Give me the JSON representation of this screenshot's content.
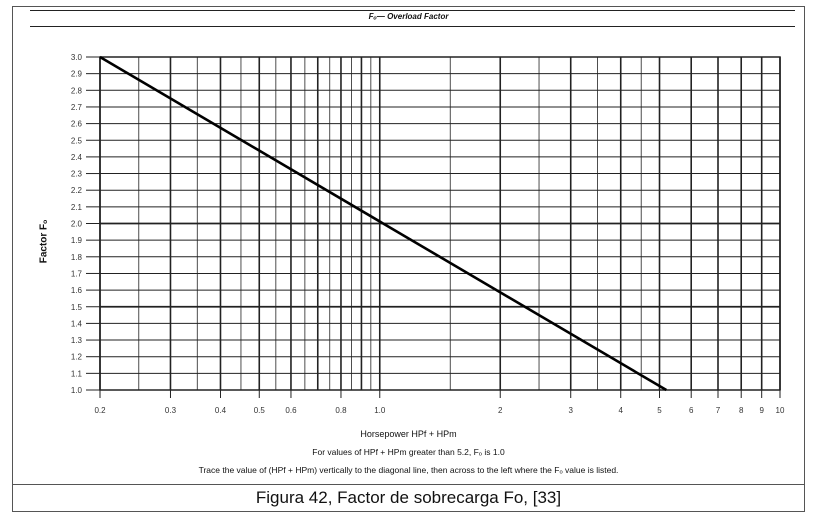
{
  "header": {
    "title": "Fₒ— Overload Factor"
  },
  "chart_data": {
    "type": "line",
    "xscale": "log",
    "xlim": [
      0.2,
      10
    ],
    "ylim": [
      1.0,
      3.0
    ],
    "xlabel": "Horsepower HPf + HPm",
    "ylabel": "Factor Fₒ",
    "x_ticks": [
      "0.2",
      "0.3",
      "0.4",
      "0.5",
      "0.6",
      "0.8",
      "1.0",
      "2",
      "3",
      "4",
      "5",
      "6",
      "7",
      "8",
      "9",
      "10"
    ],
    "x_tick_values": [
      0.2,
      0.3,
      0.4,
      0.5,
      0.6,
      0.8,
      1.0,
      2,
      3,
      4,
      5,
      6,
      7,
      8,
      9,
      10
    ],
    "y_ticks": [
      "1.0",
      "1.1",
      "1.2",
      "1.3",
      "1.4",
      "1.5",
      "1.6",
      "1.7",
      "1.8",
      "1.9",
      "2.0",
      "2.1",
      "2.2",
      "2.3",
      "2.4",
      "2.5",
      "2.6",
      "2.7",
      "2.8",
      "2.9",
      "3.0"
    ],
    "y_tick_values": [
      1.0,
      1.1,
      1.2,
      1.3,
      1.4,
      1.5,
      1.6,
      1.7,
      1.8,
      1.9,
      2.0,
      2.1,
      2.2,
      2.3,
      2.4,
      2.5,
      2.6,
      2.7,
      2.8,
      2.9,
      3.0
    ],
    "series": [
      {
        "x": [
          0.2,
          5.2
        ],
        "y": [
          3.0,
          1.0
        ]
      }
    ],
    "grid": true
  },
  "notes": {
    "line1": "For values of HPf + HPm greater than 5.2, Fₒ is 1.0",
    "line2": "Trace the value of (HPf + HPm) vertically to the diagonal line, then across to the left where the Fₒ value is listed."
  },
  "caption": "Figura 42, Factor de sobrecarga Fo, [33]"
}
